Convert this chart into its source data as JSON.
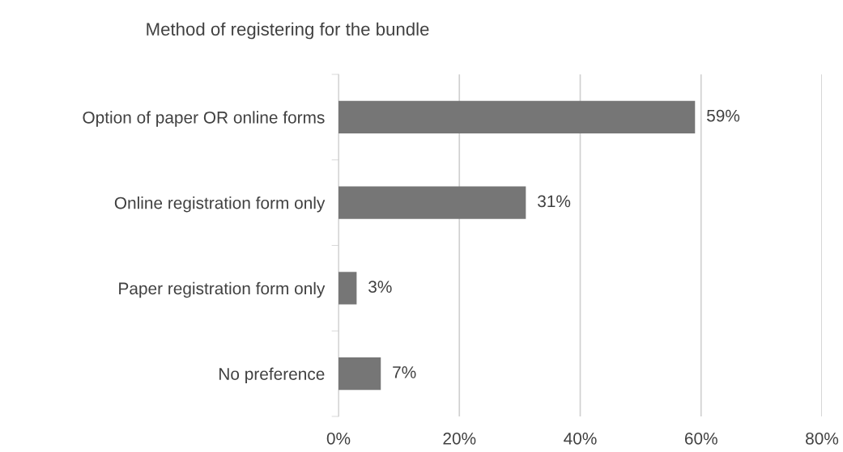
{
  "chart_data": {
    "type": "bar",
    "orientation": "horizontal",
    "title": "Method of registering for the bundle",
    "categories": [
      "Option of paper OR online forms",
      "Online registration form only",
      "Paper registration form only",
      "No preference"
    ],
    "values": [
      59,
      31,
      3,
      7
    ],
    "color": "#767676",
    "value_labels": [
      "59%",
      "31%",
      "3%",
      "7%"
    ],
    "xlim": [
      0,
      80
    ],
    "xticks": [
      {
        "value": 0,
        "label": "0%"
      },
      {
        "value": 20,
        "label": "20%"
      },
      {
        "value": 40,
        "label": "40%"
      },
      {
        "value": 60,
        "label": "60%"
      },
      {
        "value": 80,
        "label": "80%"
      }
    ],
    "grid": "x",
    "legend": false
  }
}
